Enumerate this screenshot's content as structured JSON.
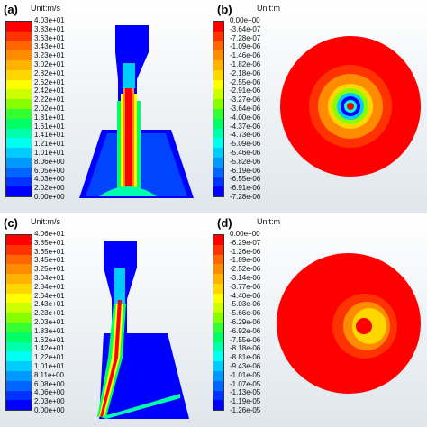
{
  "panels": [
    {
      "label": "(a)",
      "unit": "Unit:m/s",
      "ticks": [
        "4.03e+01",
        "3.83e+01",
        "3.63e+01",
        "3.43e+01",
        "3.23e+01",
        "3.02e+01",
        "2.82e+01",
        "2.62e+01",
        "2.42e+01",
        "2.22e+01",
        "2.02e+01",
        "1.81e+01",
        "1.61e+01",
        "1.41e+01",
        "1.21e+01",
        "1.01e+01",
        "8.06e+00",
        "6.05e+00",
        "4.03e+00",
        "2.02e+00",
        "0.00e+00"
      ]
    },
    {
      "label": "(b)",
      "unit": "Unit:m",
      "ticks": [
        "0.00e+00",
        "-3.64e-07",
        "-7.28e-07",
        "-1.09e-06",
        "-1.46e-06",
        "-1.82e-06",
        "-2.18e-06",
        "-2.55e-06",
        "-2.91e-06",
        "-3.27e-06",
        "-3.64e-06",
        "-4.00e-06",
        "-4.37e-06",
        "-4.73e-06",
        "-5.09e-06",
        "-5.46e-06",
        "-5.82e-06",
        "-6.19e-06",
        "-6.55e-06",
        "-6.91e-06",
        "-7.28e-06"
      ]
    },
    {
      "label": "(c)",
      "unit": "Unit:m/s",
      "ticks": [
        "4.06e+01",
        "3.85e+01",
        "3.65e+01",
        "3.45e+01",
        "3.25e+01",
        "3.04e+01",
        "2.84e+01",
        "2.64e+01",
        "2.43e+01",
        "2.23e+01",
        "2.03e+01",
        "1.83e+01",
        "1.62e+01",
        "1.42e+01",
        "1.22e+01",
        "1.01e+01",
        "8.11e+00",
        "6.08e+00",
        "4.06e+00",
        "2.03e+00",
        "0.00e+00"
      ]
    },
    {
      "label": "(d)",
      "unit": "Unit:m",
      "ticks": [
        "0.00e+00",
        "-6.29e-07",
        "-1.26e-06",
        "-1.89e-06",
        "-2.52e-06",
        "-3.14e-06",
        "-3.77e-06",
        "-4.40e-06",
        "-5.03e-06",
        "-5.66e-06",
        "-6.29e-06",
        "-6.92e-06",
        "-7.55e-06",
        "-8.18e-06",
        "-8.81e-06",
        "-9.43e-06",
        "-1.01e-05",
        "-1.07e-05",
        "-1.13e-05",
        "-1.19e-05",
        "-1.26e-05"
      ]
    }
  ],
  "colormap": [
    "#ff0000",
    "#ff3300",
    "#ff6600",
    "#ff8c00",
    "#ffb300",
    "#ffd700",
    "#ffff00",
    "#ccff00",
    "#88ff00",
    "#33ff33",
    "#00ff66",
    "#00ffaa",
    "#00ffee",
    "#00ccff",
    "#0099ff",
    "#0066ff",
    "#0033ff",
    "#0000ff"
  ]
}
